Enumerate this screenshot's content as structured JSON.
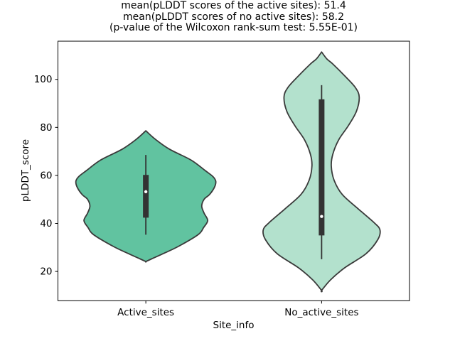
{
  "figure": {
    "background": "#ffffff"
  },
  "chart_data": {
    "type": "violin",
    "title_lines": [
      "mean(pLDDT scores of the active sites): 51.4",
      "mean(pLDDT scores of no active sites): 58.2",
      "(p-value of the Wilcoxon rank-sum test: 5.55E-01)"
    ],
    "stats": {
      "mean_active_sites": 51.4,
      "mean_no_active_sites": 58.2,
      "wilcoxon_p_value": "5.55E-01"
    },
    "xlabel": "Site_info",
    "ylabel": "pLDDT_score",
    "categories": [
      "Active_sites",
      "No_active_sites"
    ],
    "yticks": [
      20,
      40,
      60,
      80,
      100
    ],
    "ylim": [
      7.8,
      115.9
    ],
    "grid": false,
    "legend": null,
    "axis_color": "#000000",
    "edge_color": "#3a3a3a",
    "box_color": "#333333",
    "median_dot_color": "#ffffff",
    "series": [
      {
        "name": "Active_sites",
        "fill": "#61c3a0",
        "profile": [
          [
            78.6,
            0
          ],
          [
            75.0,
            0.055
          ],
          [
            70.9,
            0.135
          ],
          [
            66.4,
            0.257
          ],
          [
            62.0,
            0.338
          ],
          [
            59.5,
            0.382
          ],
          [
            57.5,
            0.398
          ],
          [
            55.0,
            0.39
          ],
          [
            52.0,
            0.362
          ],
          [
            50.1,
            0.332
          ],
          [
            47.2,
            0.318
          ],
          [
            44.2,
            0.332
          ],
          [
            41.2,
            0.352
          ],
          [
            38.2,
            0.328
          ],
          [
            35.3,
            0.297
          ],
          [
            30.3,
            0.182
          ],
          [
            27.3,
            0.095
          ],
          [
            25.2,
            0.032
          ],
          [
            24.1,
            0
          ]
        ],
        "box": {
          "whisker_low": 35.3,
          "q1": 42.4,
          "median": 53.2,
          "q3": 60.2,
          "whisker_high": 68.5
        }
      },
      {
        "name": "No_active_sites",
        "fill": "#b3e1cd",
        "profile": [
          [
            111.4,
            0
          ],
          [
            108.5,
            0.03
          ],
          [
            106.4,
            0.064
          ],
          [
            101.5,
            0.131
          ],
          [
            96.6,
            0.192
          ],
          [
            92.6,
            0.214
          ],
          [
            86.7,
            0.198
          ],
          [
            80.7,
            0.152
          ],
          [
            74.8,
            0.097
          ],
          [
            68.9,
            0.064
          ],
          [
            64.0,
            0.055
          ],
          [
            58.0,
            0.071
          ],
          [
            52.1,
            0.117
          ],
          [
            46.2,
            0.206
          ],
          [
            40.3,
            0.299
          ],
          [
            37.3,
            0.332
          ],
          [
            33.3,
            0.32
          ],
          [
            27.4,
            0.253
          ],
          [
            21.5,
            0.131
          ],
          [
            16.5,
            0.051
          ],
          [
            12.1,
            0
          ]
        ],
        "box": {
          "whisker_low": 25.1,
          "q1": 35.0,
          "median": 42.9,
          "q3": 91.7,
          "whisker_high": 97.6
        }
      }
    ]
  }
}
